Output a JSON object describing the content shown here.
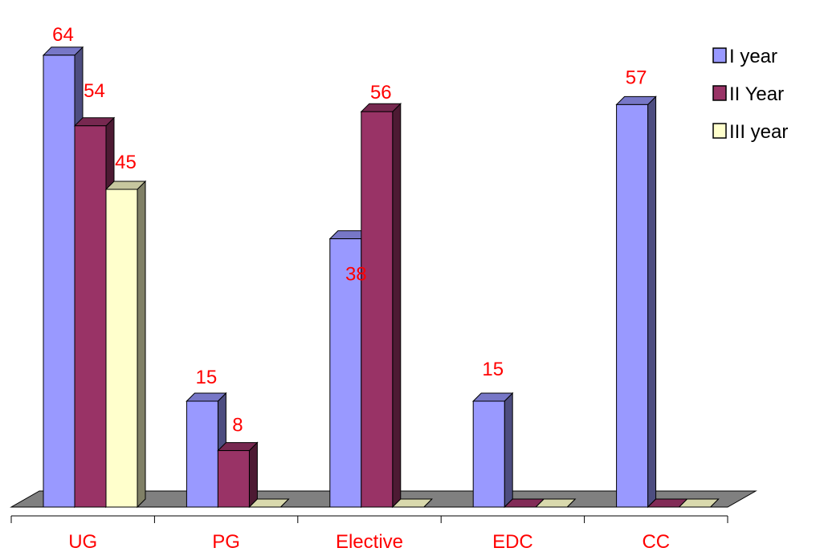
{
  "chart_data": {
    "type": "bar",
    "style": "3d-clustered-column",
    "categories": [
      "UG",
      "PG",
      "Elective",
      "EDC",
      "CC"
    ],
    "series": [
      {
        "name": "I year",
        "values": [
          64,
          15,
          38,
          15,
          57
        ],
        "color": "#9999ff"
      },
      {
        "name": "II Year",
        "values": [
          54,
          8,
          56,
          0,
          0
        ],
        "color": "#993366"
      },
      {
        "name": "III year",
        "values": [
          45,
          0,
          0,
          0,
          0
        ],
        "color": "#ffffcc"
      }
    ],
    "data_labels": [
      {
        "category": "UG",
        "series": "I year",
        "text": "64"
      },
      {
        "category": "UG",
        "series": "II Year",
        "text": "54"
      },
      {
        "category": "UG",
        "series": "III year",
        "text": "45"
      },
      {
        "category": "PG",
        "series": "I year",
        "text": "15"
      },
      {
        "category": "PG",
        "series": "II Year",
        "text": "8"
      },
      {
        "category": "Elective",
        "series": "I year",
        "text": "38"
      },
      {
        "category": "Elective",
        "series": "II Year",
        "text": "56"
      },
      {
        "category": "EDC",
        "series": "I year",
        "text": "15"
      },
      {
        "category": "CC",
        "series": "I year",
        "text": "57"
      }
    ],
    "title": "",
    "xlabel": "",
    "ylabel": "",
    "ylim": [
      0,
      64
    ],
    "grid": false,
    "legend_position": "top-right",
    "floor_color": "#808080",
    "label_color": "#ff0000"
  }
}
